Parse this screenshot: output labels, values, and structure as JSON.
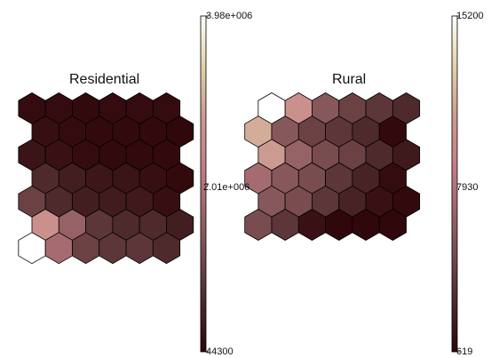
{
  "chart_data": [
    {
      "type": "heatmap",
      "layout": "hexagonal-som",
      "title": "Residential",
      "rows": 7,
      "cols": 6,
      "colorbar": {
        "min": 44300,
        "max": 3980000,
        "tick_labels": [
          "3.98e+006",
          "2.01e+006",
          "44300"
        ]
      },
      "values": [
        [
          0.03,
          0.03,
          0.02,
          0.03,
          0.03,
          0.03
        ],
        [
          0.04,
          0.03,
          0.02,
          0.02,
          0.02,
          0.01
        ],
        [
          0.06,
          0.05,
          0.03,
          0.02,
          0.02,
          0.02
        ],
        [
          0.15,
          0.1,
          0.07,
          0.06,
          0.04,
          0.02
        ],
        [
          0.25,
          0.15,
          0.1,
          0.09,
          0.08,
          0.04
        ],
        [
          0.65,
          0.4,
          0.2,
          0.15,
          0.15,
          0.1
        ],
        [
          1.0,
          0.45,
          0.25,
          0.2,
          0.2,
          0.15
        ]
      ]
    },
    {
      "type": "heatmap",
      "layout": "hexagonal-som",
      "title": "Rural",
      "rows": 6,
      "cols": 6,
      "colorbar": {
        "min": 619,
        "max": 15200,
        "tick_labels": [
          "15200",
          "7930",
          "619"
        ]
      },
      "values": [
        [
          1.0,
          0.65,
          0.35,
          0.25,
          0.2,
          0.15
        ],
        [
          0.75,
          0.35,
          0.25,
          0.2,
          0.15,
          0.02
        ],
        [
          0.7,
          0.4,
          0.3,
          0.25,
          0.15,
          0.08
        ],
        [
          0.45,
          0.35,
          0.3,
          0.2,
          0.12,
          0.03
        ],
        [
          0.35,
          0.3,
          0.2,
          0.12,
          0.05,
          0.02
        ],
        [
          0.3,
          0.2,
          0.05,
          0.01,
          0.01,
          0.01
        ]
      ]
    }
  ],
  "colormap": {
    "name": "pink-like",
    "stops": [
      {
        "t": 0.0,
        "color": "#2e0508"
      },
      {
        "t": 0.15,
        "color": "#4e2a2d"
      },
      {
        "t": 0.35,
        "color": "#87585b"
      },
      {
        "t": 0.55,
        "color": "#c47e85"
      },
      {
        "t": 0.7,
        "color": "#cd9a90"
      },
      {
        "t": 0.85,
        "color": "#e1d3a8"
      },
      {
        "t": 1.0,
        "color": "#ffffff"
      }
    ]
  }
}
